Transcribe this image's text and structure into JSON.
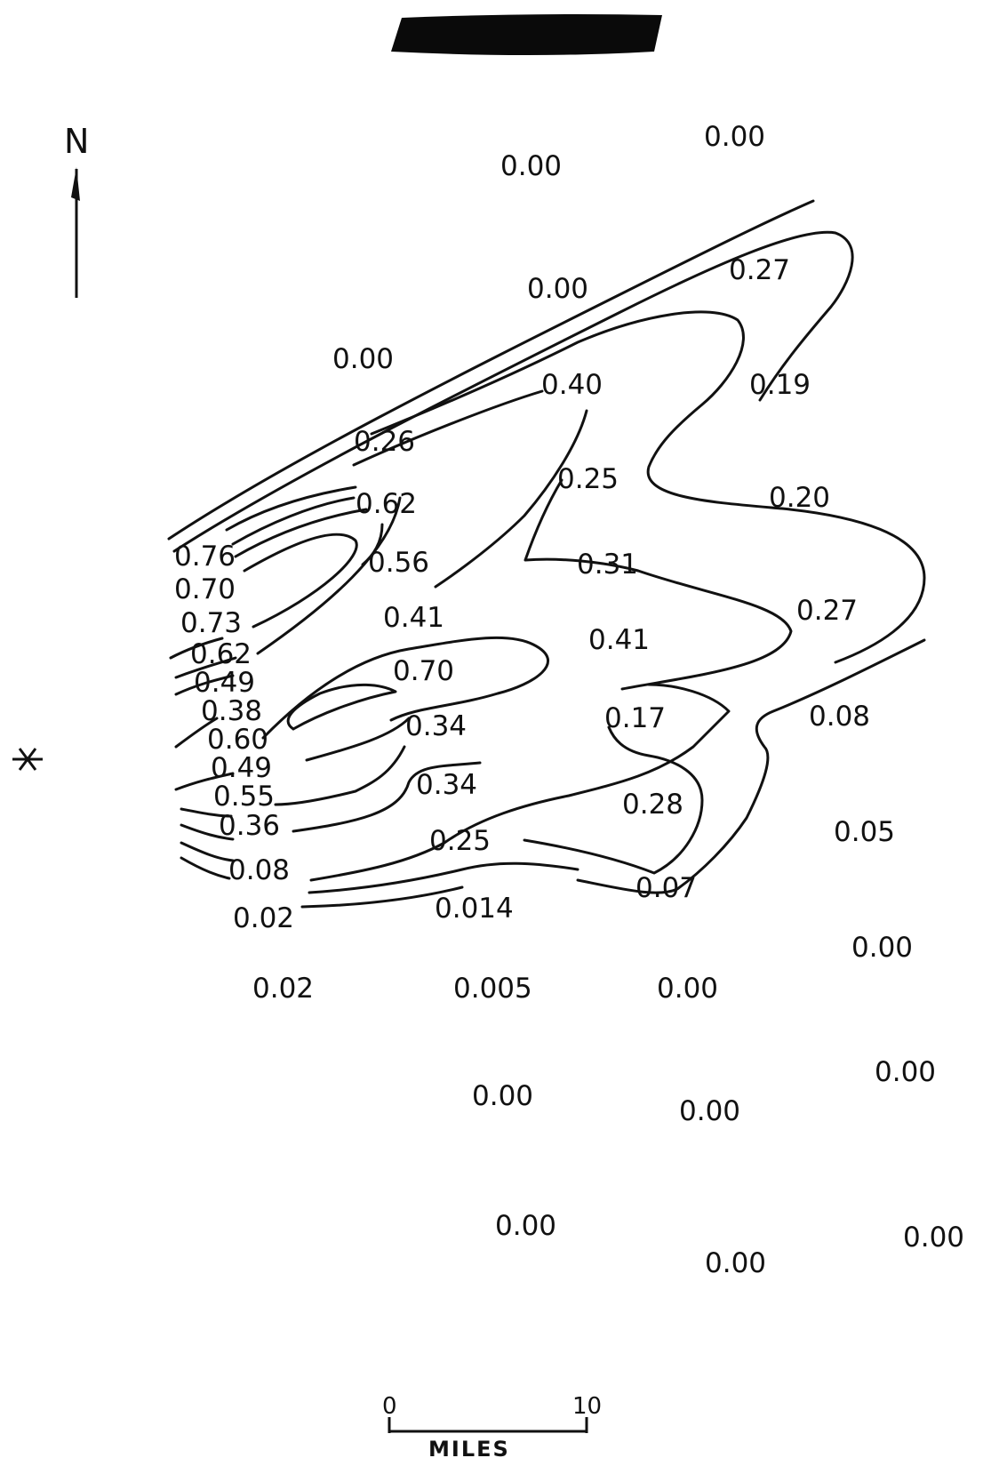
{
  "north_label": "N",
  "scale": {
    "start": "0",
    "end": "10",
    "unit": "MILES"
  },
  "values": [
    "0.00",
    "0.00",
    "0.27",
    "0.00",
    "0.00",
    "0.40",
    "0.19",
    "0.26",
    "0.25",
    "0.20",
    "0.62",
    "0.76",
    "0.56",
    "0.31",
    "0.70",
    "0.27",
    "0.73",
    "0.41",
    "0.41",
    "0.62",
    "0.49",
    "0.70",
    "0.38",
    "0.17",
    "0.08",
    "0.60",
    "0.34",
    "0.49",
    "0.34",
    "0.55",
    "0.28",
    "0.36",
    "0.05",
    "0.25",
    "0.08",
    "0.07",
    "0.014",
    "0.02",
    "0.00",
    "0.02",
    "0.005",
    "0.00",
    "0.00",
    "0.00",
    "0.00",
    "0.00",
    "0.00",
    "0.00"
  ],
  "colors": {
    "ink": "#111111",
    "background": "#ffffff"
  },
  "icons": {
    "north_arrow": "north-arrow-icon",
    "source": "asterisk-icon",
    "redaction": "redaction-bar"
  }
}
